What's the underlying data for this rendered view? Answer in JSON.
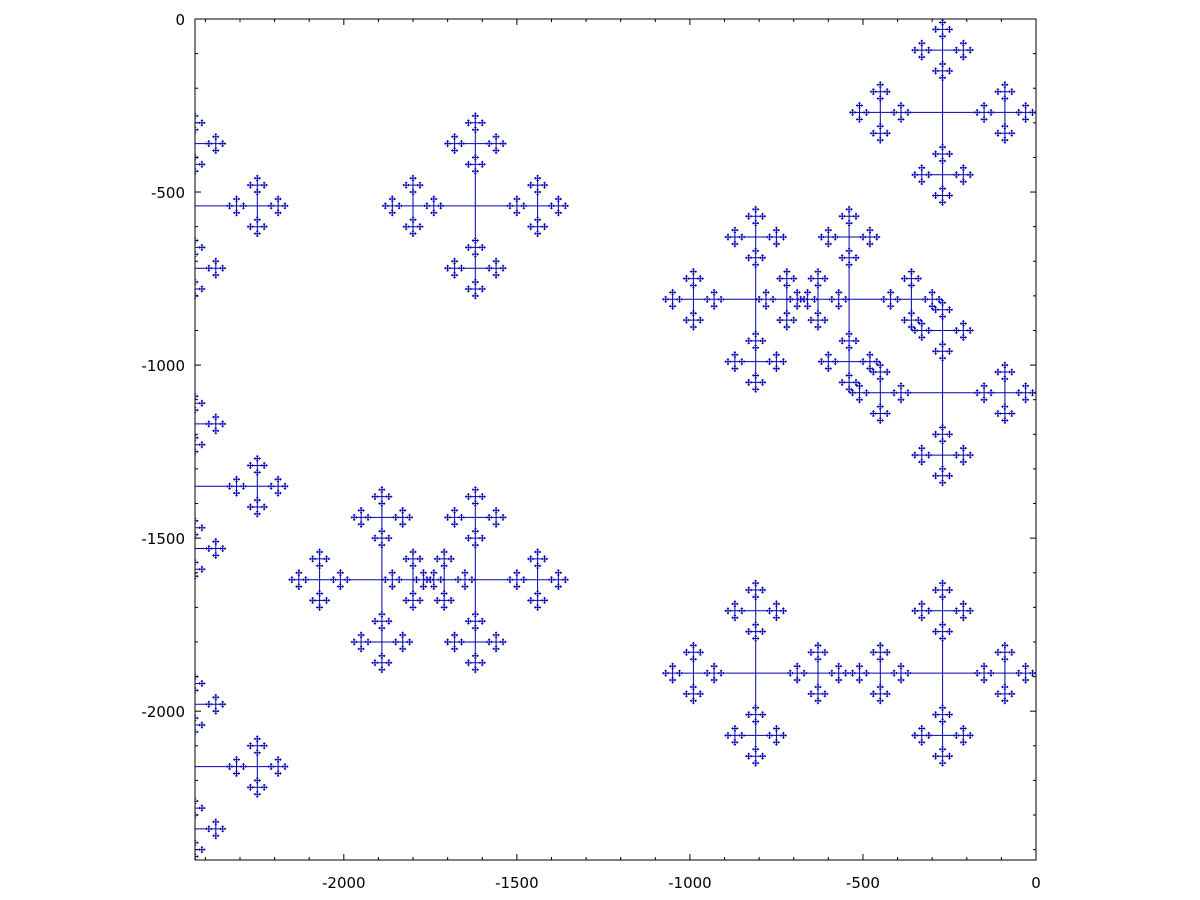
{
  "chart_data": {
    "type": "line",
    "title": "",
    "xlabel": "",
    "ylabel": "",
    "xlim": [
      -2430,
      0
    ],
    "ylim": [
      -2430,
      0
    ],
    "x_ticks": [
      {
        "value": -2000,
        "label": "-2000"
      },
      {
        "value": -1500,
        "label": "-1500"
      },
      {
        "value": -1000,
        "label": "-1000"
      },
      {
        "value": -500,
        "label": "-500"
      },
      {
        "value": 0,
        "label": "0"
      }
    ],
    "y_ticks": [
      {
        "value": 0,
        "label": "0"
      },
      {
        "value": -500,
        "label": "-500"
      },
      {
        "value": -1000,
        "label": "-1000"
      },
      {
        "value": -1500,
        "label": "-1500"
      },
      {
        "value": -2000,
        "label": "-2000"
      }
    ],
    "grid": false,
    "legend": "none",
    "series": [
      {
        "color": "#0000b4",
        "pattern": "self-similar cross fractal on a 3^n lattice",
        "x_range": [
          -2430,
          0
        ],
        "y_range": [
          -2430,
          0
        ]
      }
    ]
  }
}
